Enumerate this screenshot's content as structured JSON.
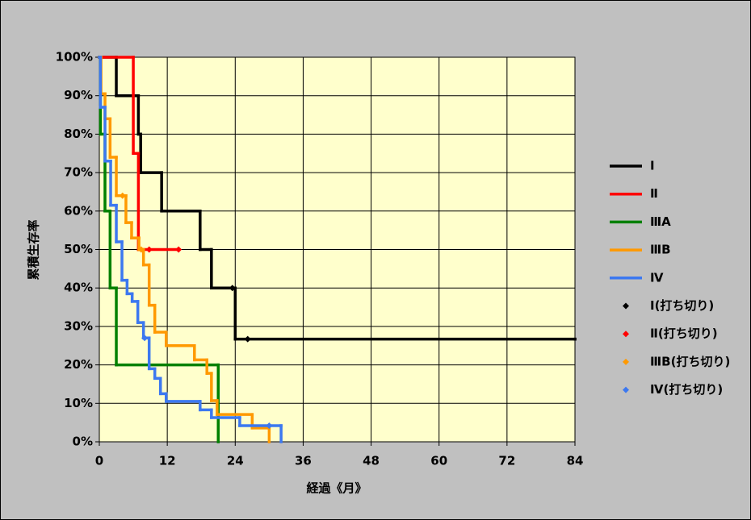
{
  "chart_data": {
    "type": "step",
    "y_label": "累積生存率",
    "x_label": "経過《月》",
    "xlim": [
      0,
      84
    ],
    "xticks": [
      0,
      12,
      24,
      36,
      48,
      60,
      72,
      84
    ],
    "ylim": [
      0,
      100
    ],
    "yticks": [
      {
        "value": 0,
        "label": "0%"
      },
      {
        "value": 10,
        "label": "10%"
      },
      {
        "value": 20,
        "label": "20%"
      },
      {
        "value": 30,
        "label": "30%"
      },
      {
        "value": 40,
        "label": "40%"
      },
      {
        "value": 50,
        "label": "50%"
      },
      {
        "value": 60,
        "label": "60%"
      },
      {
        "value": 70,
        "label": "70%"
      },
      {
        "value": 80,
        "label": "80%"
      },
      {
        "value": 90,
        "label": "90%"
      },
      {
        "value": 100,
        "label": "100%"
      }
    ],
    "grid": true,
    "series": [
      {
        "name": "Ⅰ",
        "color": "#000000",
        "style": "step",
        "x": [
          0,
          3,
          6.9,
          7.3,
          11,
          17.8,
          19.8,
          24,
          84
        ],
        "values": [
          100,
          90,
          80,
          70,
          60,
          50,
          40,
          26.7,
          26.7
        ]
      },
      {
        "name": "Ⅱ",
        "color": "#ff0000",
        "style": "step",
        "x": [
          0,
          6,
          6.9,
          14
        ],
        "values": [
          100,
          75,
          50,
          50
        ]
      },
      {
        "name": "ⅢA",
        "color": "#008000",
        "style": "step",
        "x": [
          0,
          0.2,
          1,
          1.9,
          3,
          21
        ],
        "values": [
          100,
          80,
          60,
          40,
          20,
          0
        ]
      },
      {
        "name": "ⅢB",
        "color": "#ff9900",
        "style": "step",
        "x": [
          0,
          0.3,
          1,
          1.9,
          3,
          4.7,
          5.7,
          7,
          7.8,
          8.8,
          9.8,
          11.8,
          16.8,
          19,
          19.8,
          20.8,
          27,
          30
        ],
        "values": [
          100,
          90.5,
          84,
          74,
          64,
          57,
          53,
          50,
          46,
          35.5,
          28.5,
          25,
          21.3,
          17.8,
          10.7,
          7.1,
          3.6,
          0
        ]
      },
      {
        "name": "Ⅳ",
        "color": "#3c78f0",
        "style": "step",
        "x": [
          0,
          0.2,
          1,
          2,
          3,
          4,
          4.9,
          5.8,
          6.8,
          7.8,
          8.8,
          9.8,
          10.8,
          11.8,
          17.8,
          19.8,
          24.8,
          32.1
        ],
        "values": [
          100,
          87,
          73,
          61.5,
          52,
          42,
          38.5,
          36.5,
          31,
          27,
          19,
          16.5,
          12.5,
          10.5,
          8.3,
          6.3,
          4.2,
          0
        ]
      },
      {
        "name": "Ⅰ(打ち切り)",
        "color": "#000000",
        "style": "marker",
        "x": [
          23.5,
          26.2
        ],
        "values": [
          40,
          26.7
        ]
      },
      {
        "name": "Ⅱ(打ち切り)",
        "color": "#ff0000",
        "style": "marker",
        "x": [
          8.8,
          14
        ],
        "values": [
          50,
          50
        ]
      },
      {
        "name": "ⅢB(打ち切り)",
        "color": "#ff9900",
        "style": "marker",
        "x": [
          4.1,
          7.4
        ],
        "values": [
          64,
          50
        ]
      },
      {
        "name": "Ⅳ(打ち切り)",
        "color": "#3c78f0",
        "style": "marker",
        "x": [
          8,
          30
        ],
        "values": [
          27,
          4.2
        ]
      }
    ]
  }
}
